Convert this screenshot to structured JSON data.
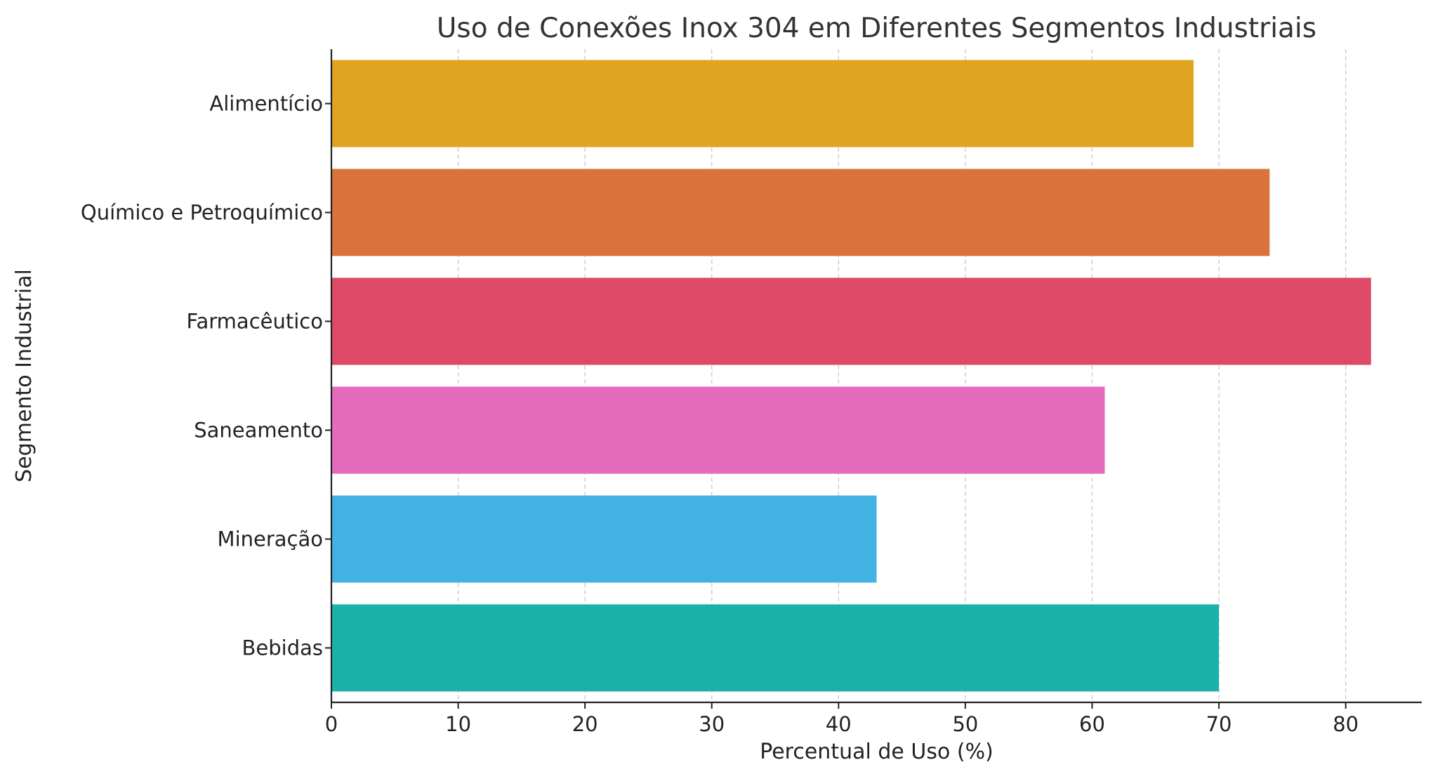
{
  "chart_data": {
    "type": "bar",
    "orientation": "horizontal",
    "title": "Uso de Conexões Inox 304 em Diferentes Segmentos Industriais",
    "xlabel": "Percentual de Uso (%)",
    "ylabel": "Segmento Industrial",
    "categories": [
      "Alimentício",
      "Químico e Petroquímico",
      "Farmacêutico",
      "Saneamento",
      "Mineração",
      "Bebidas"
    ],
    "values": [
      68,
      74,
      82,
      61,
      43,
      70
    ],
    "colors": [
      "#DFA420",
      "#DA723B",
      "#DD4A67",
      "#E56CBC",
      "#43B1E2",
      "#1AB2A8"
    ],
    "xlim": [
      0,
      86
    ],
    "xticks": [
      0,
      10,
      20,
      30,
      40,
      50,
      60,
      70,
      80
    ],
    "grid": "vertical-dashed",
    "legend": "none"
  }
}
